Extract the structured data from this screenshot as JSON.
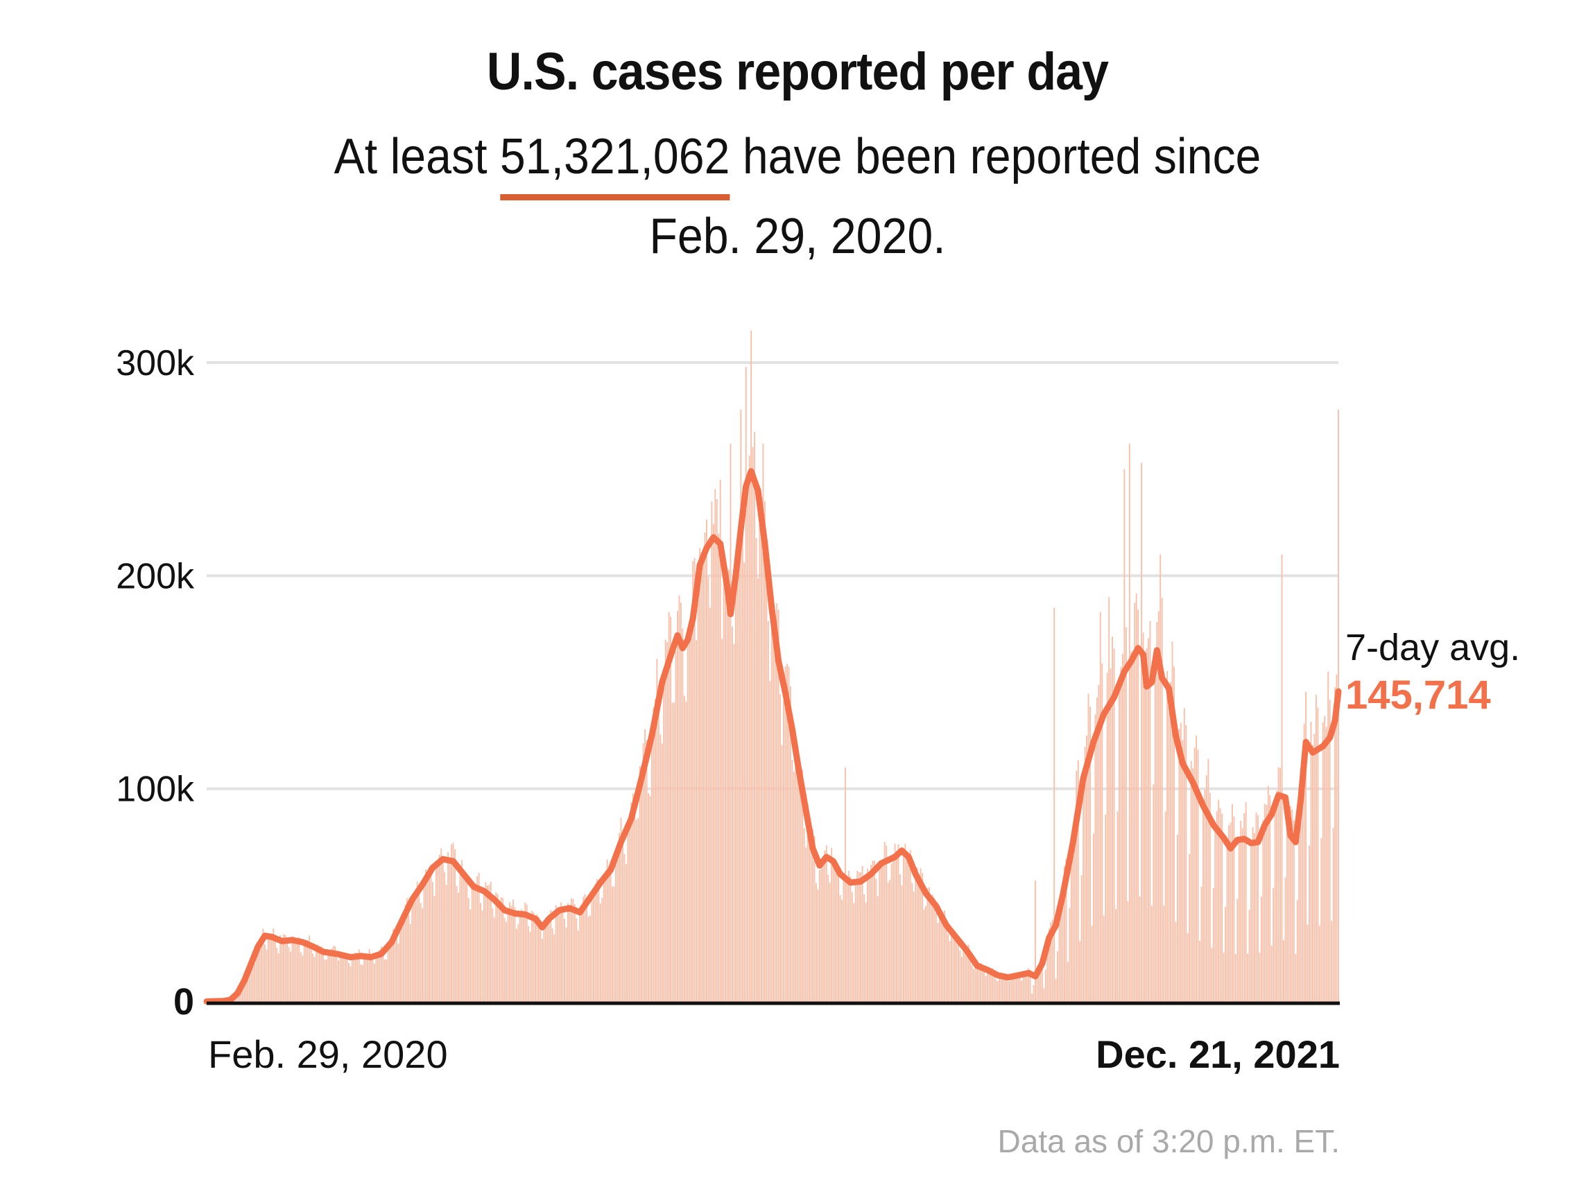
{
  "header": {
    "title": "U.S. cases reported per day",
    "subtitle_prefix": "At least ",
    "total_cases": "51,321,062",
    "subtitle_suffix": " have been reported since",
    "subtitle_line2": "Feb. 29, 2020."
  },
  "footnote": "Data as of 3:20 p.m. ET.",
  "colors": {
    "bars": "#f9bfa8",
    "line": "#f2714a",
    "underline": "#d95f33",
    "gridline": "#e2e2e2",
    "axis": "#111111",
    "avg_value": "#f2714a"
  },
  "chart_data": {
    "type": "bar",
    "title": "U.S. cases reported per day",
    "xlabel": "",
    "ylabel": "",
    "x_start": "2020-02-29",
    "x_end": "2021-12-21",
    "x_tick_labels": [
      "Feb. 29, 2020",
      "Dec. 21, 2021"
    ],
    "y_ticks": [
      0,
      100000,
      200000,
      300000
    ],
    "y_tick_labels": [
      "0",
      "100k",
      "200k",
      "300k"
    ],
    "ylim": [
      0,
      300000
    ],
    "grid": true,
    "annotation": {
      "label": "7-day avg.",
      "value": "145,714"
    },
    "series": [
      {
        "name": "7-day avg.",
        "type": "line",
        "points_day_value": [
          [
            0,
            200
          ],
          [
            10,
            400
          ],
          [
            14,
            1000
          ],
          [
            18,
            4000
          ],
          [
            22,
            10000
          ],
          [
            26,
            18000
          ],
          [
            30,
            26000
          ],
          [
            34,
            31000
          ],
          [
            38,
            30500
          ],
          [
            44,
            28500
          ],
          [
            50,
            29000
          ],
          [
            56,
            28000
          ],
          [
            62,
            26000
          ],
          [
            68,
            23500
          ],
          [
            76,
            22500
          ],
          [
            84,
            21000
          ],
          [
            90,
            21500
          ],
          [
            96,
            21000
          ],
          [
            102,
            22500
          ],
          [
            108,
            28000
          ],
          [
            114,
            38000
          ],
          [
            120,
            48000
          ],
          [
            126,
            55000
          ],
          [
            132,
            63000
          ],
          [
            138,
            67000
          ],
          [
            144,
            66000
          ],
          [
            150,
            60000
          ],
          [
            156,
            54000
          ],
          [
            162,
            52000
          ],
          [
            168,
            48000
          ],
          [
            174,
            43000
          ],
          [
            180,
            41500
          ],
          [
            186,
            41000
          ],
          [
            192,
            39000
          ],
          [
            196,
            35000
          ],
          [
            200,
            39000
          ],
          [
            206,
            43000
          ],
          [
            212,
            44000
          ],
          [
            218,
            42000
          ],
          [
            224,
            49000
          ],
          [
            230,
            56000
          ],
          [
            236,
            62000
          ],
          [
            242,
            75000
          ],
          [
            248,
            86000
          ],
          [
            254,
            105000
          ],
          [
            260,
            125000
          ],
          [
            266,
            150000
          ],
          [
            272,
            165000
          ],
          [
            275,
            172000
          ],
          [
            278,
            166000
          ],
          [
            281,
            170000
          ],
          [
            284,
            180000
          ],
          [
            288,
            205000
          ],
          [
            292,
            213000
          ],
          [
            296,
            218000
          ],
          [
            300,
            215000
          ],
          [
            304,
            195000
          ],
          [
            306,
            182000
          ],
          [
            309,
            200000
          ],
          [
            312,
            222000
          ],
          [
            315,
            242000
          ],
          [
            318,
            249000
          ],
          [
            322,
            240000
          ],
          [
            326,
            215000
          ],
          [
            330,
            185000
          ],
          [
            334,
            160000
          ],
          [
            338,
            145000
          ],
          [
            342,
            128000
          ],
          [
            346,
            108000
          ],
          [
            350,
            90000
          ],
          [
            354,
            72000
          ],
          [
            358,
            64000
          ],
          [
            362,
            68000
          ],
          [
            366,
            66000
          ],
          [
            370,
            60000
          ],
          [
            376,
            56000
          ],
          [
            382,
            56500
          ],
          [
            388,
            60000
          ],
          [
            394,
            65000
          ],
          [
            398,
            66500
          ],
          [
            402,
            68000
          ],
          [
            406,
            71000
          ],
          [
            410,
            68000
          ],
          [
            414,
            60000
          ],
          [
            420,
            51000
          ],
          [
            426,
            45000
          ],
          [
            432,
            36000
          ],
          [
            438,
            30000
          ],
          [
            444,
            24000
          ],
          [
            450,
            17000
          ],
          [
            456,
            15000
          ],
          [
            462,
            12500
          ],
          [
            468,
            11500
          ],
          [
            474,
            12500
          ],
          [
            480,
            13500
          ],
          [
            484,
            12000
          ],
          [
            488,
            18000
          ],
          [
            492,
            30000
          ],
          [
            496,
            36000
          ],
          [
            500,
            50000
          ],
          [
            506,
            75000
          ],
          [
            512,
            105000
          ],
          [
            518,
            122000
          ],
          [
            524,
            135000
          ],
          [
            530,
            143000
          ],
          [
            536,
            155000
          ],
          [
            540,
            160000
          ],
          [
            544,
            166000
          ],
          [
            547,
            163000
          ],
          [
            549,
            148000
          ],
          [
            552,
            150000
          ],
          [
            555,
            165000
          ],
          [
            558,
            152000
          ],
          [
            562,
            147000
          ],
          [
            566,
            125000
          ],
          [
            570,
            112000
          ],
          [
            576,
            103000
          ],
          [
            582,
            92000
          ],
          [
            588,
            83000
          ],
          [
            594,
            77000
          ],
          [
            598,
            72000
          ],
          [
            602,
            76000
          ],
          [
            606,
            76500
          ],
          [
            610,
            74500
          ],
          [
            614,
            75000
          ],
          [
            618,
            83000
          ],
          [
            622,
            88000
          ],
          [
            626,
            97000
          ],
          [
            630,
            96000
          ],
          [
            633,
            78000
          ],
          [
            636,
            75000
          ],
          [
            639,
            95000
          ],
          [
            642,
            122000
          ],
          [
            646,
            117000
          ],
          [
            652,
            120000
          ],
          [
            656,
            124000
          ],
          [
            659,
            132000
          ],
          [
            661,
            145714
          ]
        ]
      },
      {
        "name": "Daily cases",
        "type": "bar",
        "note": "daily reported cases, one bar per day from Feb. 29, 2020 to Dec. 21, 2021; values generated from the 7-day average with weekday reporting pattern",
        "weekday_factors": [
          0.62,
          1.05,
          1.08,
          1.12,
          1.22,
          1.18,
          0.73
        ],
        "spikes_day_value": [
          [
            287,
            205000
          ],
          [
            300,
            245000
          ],
          [
            306,
            262000
          ],
          [
            312,
            278000
          ],
          [
            315,
            298000
          ],
          [
            318,
            315000
          ],
          [
            325,
            262000
          ],
          [
            373,
            110000
          ],
          [
            484,
            57000
          ],
          [
            495,
            185000
          ],
          [
            522,
            183000
          ],
          [
            527,
            190000
          ],
          [
            536,
            250000
          ],
          [
            539,
            262000
          ],
          [
            546,
            253000
          ],
          [
            552,
            230000
          ],
          [
            557,
            210000
          ],
          [
            594,
            118000
          ],
          [
            628,
            210000
          ],
          [
            643,
            210000
          ],
          [
            650,
            197000
          ],
          [
            661,
            278000
          ]
        ]
      }
    ]
  }
}
